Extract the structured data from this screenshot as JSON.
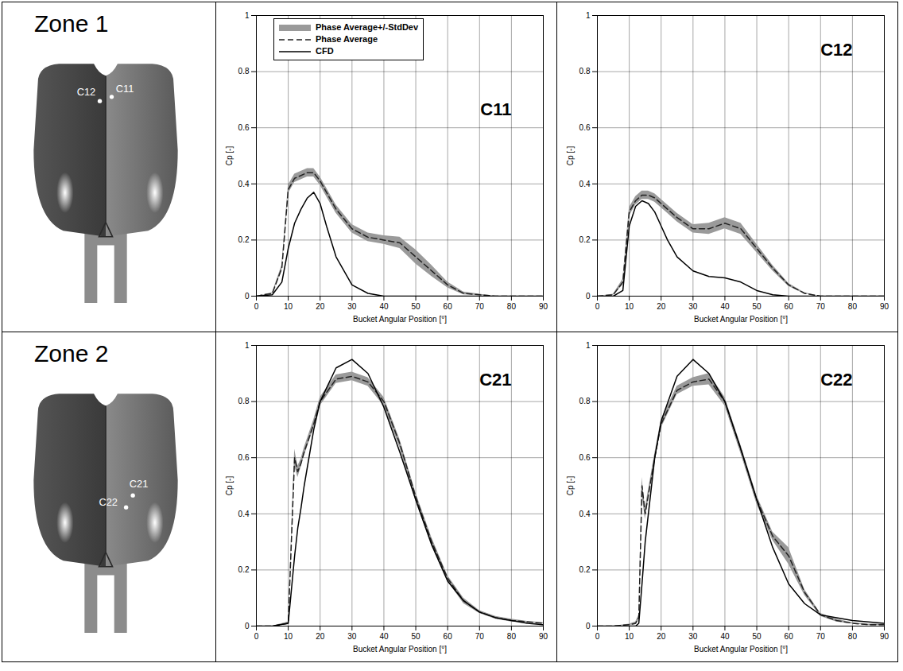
{
  "zones": [
    {
      "title": "Zone 1",
      "points": [
        "C12",
        "C11"
      ]
    },
    {
      "title": "Zone 2",
      "points": [
        "C21",
        "C22"
      ]
    }
  ],
  "chart_data": [
    {
      "type": "line",
      "title": "C11",
      "xlabel": "Bucket Angular Position [°]",
      "ylabel": "Cp [-]",
      "xlim": [
        0,
        90
      ],
      "xticks": [
        0,
        10,
        20,
        30,
        40,
        50,
        60,
        70,
        80,
        90
      ],
      "ylim": [
        0,
        1
      ],
      "yticks": [
        0,
        0.2,
        0.4,
        0.6,
        0.8,
        1
      ],
      "grid": true,
      "legend": "upper left",
      "x": [
        0,
        5,
        8,
        10,
        12,
        14,
        16,
        18,
        20,
        22,
        25,
        30,
        35,
        40,
        45,
        50,
        55,
        60,
        65,
        70,
        75,
        80,
        85,
        90
      ],
      "series": [
        {
          "name": "Phase Average+/-StdDev",
          "type": "area",
          "color": "#9a9a9a",
          "values": [
            0,
            0.01,
            0.1,
            0.38,
            0.42,
            0.43,
            0.44,
            0.44,
            0.41,
            0.37,
            0.31,
            0.24,
            0.21,
            0.2,
            0.19,
            0.14,
            0.09,
            0.04,
            0.01,
            0.005,
            0,
            0,
            0,
            0
          ],
          "error": [
            0,
            0.002,
            0.01,
            0.015,
            0.015,
            0.015,
            0.015,
            0.015,
            0.015,
            0.015,
            0.015,
            0.015,
            0.015,
            0.015,
            0.02,
            0.025,
            0.02,
            0.01,
            0.005,
            0.002,
            0,
            0,
            0,
            0
          ]
        },
        {
          "name": "Phase Average",
          "color": "#222222",
          "line_style": "dashed",
          "values": [
            0,
            0.01,
            0.1,
            0.38,
            0.42,
            0.43,
            0.44,
            0.44,
            0.41,
            0.37,
            0.31,
            0.24,
            0.21,
            0.2,
            0.19,
            0.14,
            0.09,
            0.04,
            0.01,
            0.005,
            0,
            0,
            0,
            0
          ]
        },
        {
          "name": "CFD",
          "color": "#000000",
          "line_style": "solid",
          "values": [
            0,
            0.005,
            0.05,
            0.17,
            0.26,
            0.31,
            0.35,
            0.37,
            0.33,
            0.25,
            0.14,
            0.04,
            0.01,
            0,
            0,
            0,
            0,
            0,
            0,
            0,
            0,
            0,
            0,
            0
          ]
        }
      ]
    },
    {
      "type": "line",
      "title": "C12",
      "xlabel": "Bucket Angular Position [°]",
      "ylabel": "Cp [-]",
      "xlim": [
        0,
        90
      ],
      "xticks": [
        0,
        10,
        20,
        30,
        40,
        50,
        60,
        70,
        80,
        90
      ],
      "ylim": [
        0,
        1
      ],
      "yticks": [
        0,
        0.2,
        0.4,
        0.6,
        0.8,
        1
      ],
      "grid": true,
      "x": [
        0,
        5,
        8,
        10,
        12,
        14,
        16,
        18,
        20,
        22,
        25,
        30,
        35,
        40,
        45,
        50,
        55,
        60,
        65,
        70,
        75,
        80,
        85,
        90
      ],
      "series": [
        {
          "name": "Phase Average+/-StdDev",
          "type": "area",
          "color": "#9a9a9a",
          "values": [
            0,
            0.005,
            0.05,
            0.3,
            0.34,
            0.36,
            0.36,
            0.35,
            0.33,
            0.31,
            0.28,
            0.24,
            0.24,
            0.26,
            0.24,
            0.17,
            0.1,
            0.04,
            0.01,
            0,
            0,
            0,
            0,
            0
          ],
          "error": [
            0,
            0.002,
            0.01,
            0.015,
            0.015,
            0.015,
            0.015,
            0.015,
            0.015,
            0.015,
            0.015,
            0.015,
            0.02,
            0.02,
            0.02,
            0.015,
            0.01,
            0.005,
            0.002,
            0,
            0,
            0,
            0,
            0
          ]
        },
        {
          "name": "Phase Average",
          "color": "#222222",
          "line_style": "dashed",
          "values": [
            0,
            0.005,
            0.05,
            0.3,
            0.34,
            0.36,
            0.36,
            0.35,
            0.33,
            0.31,
            0.28,
            0.24,
            0.24,
            0.26,
            0.24,
            0.17,
            0.1,
            0.04,
            0.01,
            0,
            0,
            0,
            0,
            0
          ]
        },
        {
          "name": "CFD",
          "color": "#000000",
          "line_style": "solid",
          "values": [
            0,
            0,
            0.02,
            0.25,
            0.32,
            0.34,
            0.33,
            0.3,
            0.25,
            0.2,
            0.14,
            0.09,
            0.07,
            0.065,
            0.05,
            0.02,
            0.005,
            0,
            0,
            0,
            0,
            0,
            0,
            0
          ]
        }
      ]
    },
    {
      "type": "line",
      "title": "C21",
      "xlabel": "Bucket Angular Position [°]",
      "ylabel": "Cp [-]",
      "xlim": [
        0,
        90
      ],
      "xticks": [
        0,
        10,
        20,
        30,
        40,
        50,
        60,
        70,
        80,
        90
      ],
      "ylim": [
        0,
        1
      ],
      "yticks": [
        0,
        0.2,
        0.4,
        0.6,
        0.8,
        1
      ],
      "grid": true,
      "x": [
        0,
        5,
        10,
        12,
        13,
        14,
        15,
        18,
        20,
        25,
        30,
        35,
        40,
        45,
        50,
        55,
        60,
        65,
        70,
        75,
        80,
        85,
        90
      ],
      "series": [
        {
          "name": "Phase Average+/-StdDev",
          "type": "area",
          "color": "#9a9a9a",
          "values": [
            0,
            0,
            0.01,
            0.6,
            0.55,
            0.58,
            0.62,
            0.72,
            0.8,
            0.88,
            0.89,
            0.87,
            0.8,
            0.65,
            0.46,
            0.3,
            0.17,
            0.09,
            0.05,
            0.03,
            0.02,
            0.015,
            0.01
          ],
          "error": [
            0,
            0,
            0.005,
            0.03,
            0.02,
            0.015,
            0.015,
            0.015,
            0.015,
            0.015,
            0.015,
            0.015,
            0.015,
            0.015,
            0.015,
            0.015,
            0.01,
            0.01,
            0.005,
            0.005,
            0.005,
            0.002,
            0.002
          ]
        },
        {
          "name": "Phase Average",
          "color": "#222222",
          "line_style": "dashed",
          "values": [
            0,
            0,
            0.01,
            0.6,
            0.55,
            0.58,
            0.62,
            0.72,
            0.8,
            0.88,
            0.89,
            0.87,
            0.8,
            0.65,
            0.46,
            0.3,
            0.17,
            0.09,
            0.05,
            0.03,
            0.02,
            0.015,
            0.01
          ]
        },
        {
          "name": "CFD",
          "color": "#000000",
          "line_style": "solid",
          "values": [
            0,
            0,
            0.01,
            0.25,
            0.35,
            0.42,
            0.5,
            0.7,
            0.8,
            0.92,
            0.95,
            0.9,
            0.78,
            0.62,
            0.45,
            0.29,
            0.16,
            0.09,
            0.05,
            0.03,
            0.02,
            0.01,
            0.005
          ]
        }
      ]
    },
    {
      "type": "line",
      "title": "C22",
      "xlabel": "Bucket Angular Position [°]",
      "ylabel": "Cp [-]",
      "xlim": [
        0,
        90
      ],
      "xticks": [
        0,
        10,
        20,
        30,
        40,
        50,
        60,
        70,
        80,
        90
      ],
      "ylim": [
        0,
        1
      ],
      "yticks": [
        0,
        0.2,
        0.4,
        0.6,
        0.8,
        1
      ],
      "grid": true,
      "x": [
        0,
        5,
        10,
        12,
        13,
        14,
        15,
        18,
        20,
        25,
        30,
        35,
        40,
        45,
        50,
        55,
        60,
        65,
        70,
        75,
        80,
        85,
        90
      ],
      "series": [
        {
          "name": "Phase Average+/-StdDev",
          "type": "area",
          "color": "#9a9a9a",
          "values": [
            0,
            0,
            0.005,
            0.01,
            0.03,
            0.5,
            0.4,
            0.6,
            0.72,
            0.84,
            0.87,
            0.88,
            0.8,
            0.63,
            0.45,
            0.32,
            0.25,
            0.12,
            0.04,
            0.02,
            0.01,
            0.005,
            0.005
          ],
          "error": [
            0,
            0,
            0.002,
            0.005,
            0.01,
            0.03,
            0.02,
            0.015,
            0.015,
            0.015,
            0.015,
            0.02,
            0.015,
            0.015,
            0.015,
            0.015,
            0.03,
            0.01,
            0.005,
            0.005,
            0.002,
            0.002,
            0.002
          ]
        },
        {
          "name": "Phase Average",
          "color": "#222222",
          "line_style": "dashed",
          "values": [
            0,
            0,
            0.005,
            0.01,
            0.03,
            0.5,
            0.4,
            0.6,
            0.72,
            0.84,
            0.87,
            0.88,
            0.8,
            0.63,
            0.45,
            0.32,
            0.25,
            0.12,
            0.04,
            0.02,
            0.01,
            0.005,
            0.005
          ]
        },
        {
          "name": "CFD",
          "color": "#000000",
          "line_style": "solid",
          "values": [
            0,
            0,
            0,
            0,
            0.01,
            0.15,
            0.3,
            0.6,
            0.73,
            0.89,
            0.95,
            0.9,
            0.8,
            0.63,
            0.45,
            0.28,
            0.15,
            0.08,
            0.04,
            0.03,
            0.02,
            0.015,
            0.01
          ]
        }
      ]
    }
  ]
}
